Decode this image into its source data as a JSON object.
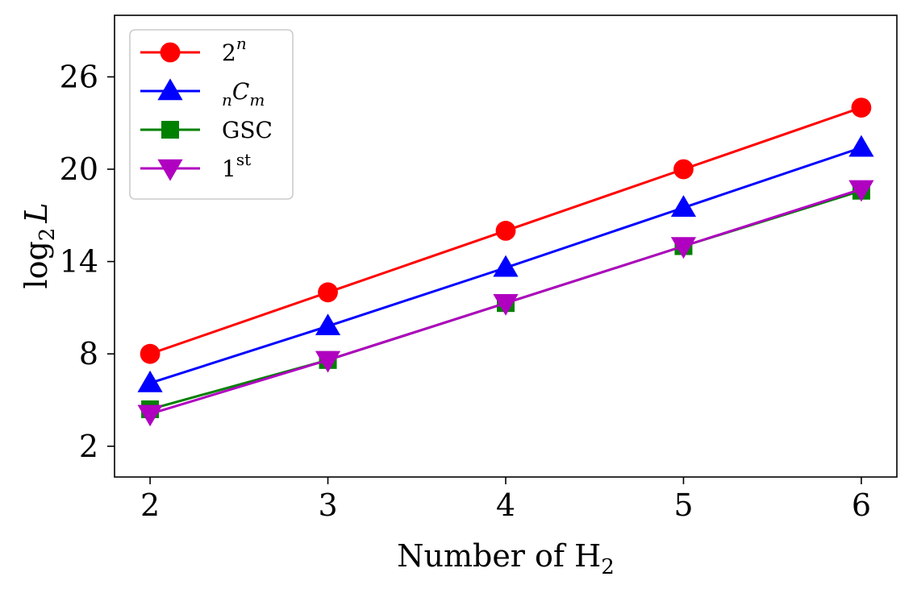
{
  "chart_data": {
    "type": "line",
    "xlabel": "Number of H",
    "xlabel_sub": "2",
    "ylabel": "log",
    "ylabel_sub": "2",
    "ylabel_var": "L",
    "x": [
      2,
      3,
      4,
      5,
      6
    ],
    "xlim": [
      1.8,
      6.2
    ],
    "ylim": [
      0,
      30
    ],
    "xticks": [
      2,
      3,
      4,
      5,
      6
    ],
    "yticks": [
      2,
      8,
      14,
      20,
      26
    ],
    "grid": false,
    "legend_position": "top-left",
    "series": [
      {
        "name": "2",
        "name_sup": "n",
        "marker": "circle",
        "color": "#ff0000",
        "values": [
          8,
          12,
          16,
          20,
          24
        ]
      },
      {
        "name": "C",
        "name_pre_sub": "n",
        "name_sub": "m",
        "marker": "triangle-up",
        "color": "#0000ff",
        "values": [
          6.1,
          9.8,
          13.6,
          17.5,
          21.4
        ]
      },
      {
        "name": "GSC",
        "marker": "square",
        "color": "#008000",
        "values": [
          4.4,
          7.6,
          11.3,
          15.0,
          18.6
        ]
      },
      {
        "name": "1",
        "name_sup": "st",
        "marker": "triangle-down",
        "color": "#b000c0",
        "values": [
          4.1,
          7.6,
          11.3,
          15.0,
          18.7
        ]
      }
    ]
  }
}
